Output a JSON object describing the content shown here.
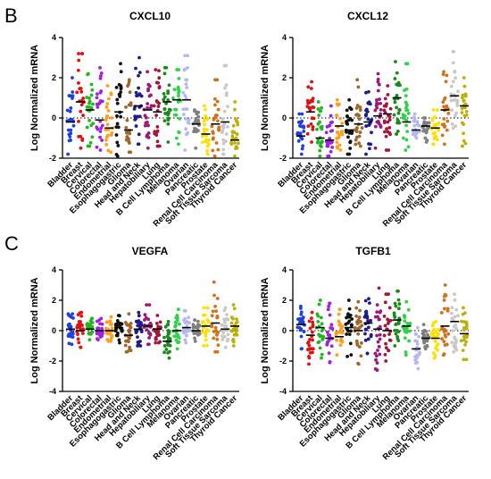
{
  "panel_letters": [
    "B",
    "C"
  ],
  "colors": {
    "Bladder": "#1f3fe0",
    "Breast": "#e01010",
    "Cervical": "#22b522",
    "Colorectal": "#a020e0",
    "Endometrial": "#ff9f1c",
    "Esophagogastric": "#111111",
    "Glioma": "#a0662a",
    "Head and Neck": "#1c1c8c",
    "Hepatobiliary": "#9a1a7a",
    "Lung": "#a3163a",
    "B Cell Lymphoma": "#1a8a1a",
    "Melanoma": "#2fd24a",
    "Ovarian": "#b4b8f2",
    "Pancreatic": "#7f7f7f",
    "Prostate": "#ffe100",
    "Renal Cell Carcinoma": "#d4711a",
    "Soft Tissue Sarcoma": "#c8c8c8",
    "Thyroid Cancer": "#bdb00c"
  },
  "chart_data": [
    {
      "type": "scatter",
      "title": "CXCL10",
      "ylabel": "Log Normalized mRNA",
      "ylim": [
        -2,
        4
      ],
      "yticks": [
        -2,
        0,
        2,
        4
      ],
      "categories": [
        "Bladder",
        "Breast",
        "Cervical",
        "Colorectal",
        "Endometrial",
        "Esophagogastric",
        "Glioma",
        "Head and Neck",
        "Hepatobiliary",
        "Lung",
        "B Cell Lymphoma",
        "Melanoma",
        "Ovarian",
        "Pancreatic",
        "Prostate",
        "Renal Cell Carcinoma",
        "Soft Tissue Sarcoma",
        "Thyroid Cancer"
      ],
      "series": [
        {
          "min": -1.8,
          "max": 2.0,
          "median": -0.2
        },
        {
          "min": -1.5,
          "max": 3.2,
          "median": 0.8
        },
        {
          "min": -1.4,
          "max": 2.2,
          "median": 0.4
        },
        {
          "min": -1.6,
          "max": 2.5,
          "median": -0.1
        },
        {
          "min": -1.7,
          "max": 1.6,
          "median": -0.5
        },
        {
          "min": -1.9,
          "max": 2.7,
          "median": 0.3
        },
        {
          "min": -1.7,
          "max": 1.9,
          "median": -0.6
        },
        {
          "min": -1.3,
          "max": 3.0,
          "median": 0.6
        },
        {
          "min": -1.5,
          "max": 2.3,
          "median": 0.4
        },
        {
          "min": -1.4,
          "max": 2.4,
          "median": 0.3
        },
        {
          "min": -1.2,
          "max": 2.5,
          "median": 0.8
        },
        {
          "min": -1.3,
          "max": 2.4,
          "median": 0.9
        },
        {
          "min": -1.6,
          "max": 3.1,
          "median": 0.9
        },
        {
          "min": -1.5,
          "max": 0.4,
          "median": -0.3
        },
        {
          "min": -1.8,
          "max": 0.6,
          "median": -0.8
        },
        {
          "min": -1.9,
          "max": 1.9,
          "median": -0.3
        },
        {
          "min": -1.8,
          "max": 2.6,
          "median": -0.2
        },
        {
          "min": -1.9,
          "max": 0.8,
          "median": -1.1
        }
      ]
    },
    {
      "type": "scatter",
      "title": "CXCL12",
      "ylabel": "Log Normalized mRNA",
      "ylim": [
        -2,
        4
      ],
      "yticks": [
        -2,
        0,
        2,
        4
      ],
      "categories": [
        "Bladder",
        "Breast",
        "Cervical",
        "Colorectal",
        "Endometrial",
        "Esophagogastric",
        "Glioma",
        "Head and Neck",
        "Hepatobiliary",
        "Lung",
        "B Cell Lymphoma",
        "Melanoma",
        "Ovarian",
        "Pancreatic",
        "Prostate",
        "Renal Cell Carcinoma",
        "Soft Tissue Sarcoma",
        "Thyroid Cancer"
      ],
      "series": [
        {
          "min": -1.8,
          "max": 0.2,
          "median": -0.9
        },
        {
          "min": -1.2,
          "max": 1.8,
          "median": 0.3
        },
        {
          "min": -1.9,
          "max": 0.8,
          "median": -1.0
        },
        {
          "min": -1.9,
          "max": 0.6,
          "median": -1.1
        },
        {
          "min": -1.6,
          "max": 0.9,
          "median": -0.4
        },
        {
          "min": -1.8,
          "max": 0.9,
          "median": -0.6
        },
        {
          "min": -1.4,
          "max": 1.9,
          "median": -0.3
        },
        {
          "min": -1.8,
          "max": 1.3,
          "median": -0.2
        },
        {
          "min": -1.5,
          "max": 2.2,
          "median": 0.1
        },
        {
          "min": -1.6,
          "max": 1.6,
          "median": 0.2
        },
        {
          "min": -0.8,
          "max": 2.8,
          "median": 1.0
        },
        {
          "min": -1.6,
          "max": 2.7,
          "median": -0.2
        },
        {
          "min": -1.0,
          "max": 0.2,
          "median": -0.6
        },
        {
          "min": -1.2,
          "max": 0.0,
          "median": -0.4
        },
        {
          "min": -1.3,
          "max": 0.4,
          "median": -0.5
        },
        {
          "min": -1.3,
          "max": 2.3,
          "median": 0.4
        },
        {
          "min": -0.5,
          "max": 3.3,
          "median": 1.1
        },
        {
          "min": -1.4,
          "max": 2.0,
          "median": 0.6
        }
      ]
    },
    {
      "type": "scatter",
      "title": "VEGFA",
      "ylabel": "Log Normalized mRNA",
      "ylim": [
        -4,
        4
      ],
      "yticks": [
        -4,
        -2,
        0,
        2,
        4
      ],
      "categories": [
        "Bladder",
        "Breast",
        "Cervical",
        "Colorectal",
        "Endometrial",
        "Esophagogastric",
        "Glioma",
        "Head and Neck",
        "Hepatobiliary",
        "Lung",
        "B Cell Lymphoma",
        "Melanoma",
        "Ovarian",
        "Pancreatic",
        "Prostate",
        "Renal Cell Carcinoma",
        "Soft Tissue Sarcoma",
        "Thyroid Cancer"
      ],
      "series": [
        {
          "min": -0.9,
          "max": 1.1,
          "median": 0.1
        },
        {
          "min": -1.1,
          "max": 1.2,
          "median": 0.0
        },
        {
          "min": -0.6,
          "max": 0.8,
          "median": 0.1
        },
        {
          "min": -0.6,
          "max": 0.8,
          "median": 0.0
        },
        {
          "min": -0.7,
          "max": 0.9,
          "median": 0.0
        },
        {
          "min": -0.8,
          "max": 1.0,
          "median": 0.2
        },
        {
          "min": -1.4,
          "max": 1.1,
          "median": -0.3
        },
        {
          "min": -1.0,
          "max": 1.2,
          "median": 0.1
        },
        {
          "min": -0.9,
          "max": 1.7,
          "median": 0.3
        },
        {
          "min": -0.8,
          "max": 1.0,
          "median": 0.1
        },
        {
          "min": -1.8,
          "max": 0.6,
          "median": -0.7
        },
        {
          "min": -1.2,
          "max": 1.4,
          "median": 0.0
        },
        {
          "min": -0.8,
          "max": 1.3,
          "median": 0.2
        },
        {
          "min": -0.7,
          "max": 0.7,
          "median": 0.0
        },
        {
          "min": -1.0,
          "max": 1.5,
          "median": 0.3
        },
        {
          "min": -1.4,
          "max": 3.2,
          "median": 0.5
        },
        {
          "min": -1.1,
          "max": 1.5,
          "median": 0.1
        },
        {
          "min": -1.0,
          "max": 1.7,
          "median": 0.3
        }
      ]
    },
    {
      "type": "scatter",
      "title": "TGFB1",
      "ylabel": "Log Normalized mRNA",
      "ylim": [
        -4,
        4
      ],
      "yticks": [
        -4,
        -2,
        0,
        2,
        4
      ],
      "categories": [
        "Bladder",
        "Breast",
        "Cervical",
        "Colorectal",
        "Endometrial",
        "Esophagogastric",
        "Glioma",
        "Head and Neck",
        "Hepatobiliary",
        "Lung",
        "B Cell Lymphoma",
        "Melanoma",
        "Ovarian",
        "Pancreatic",
        "Prostate",
        "Renal Cell Carcinoma",
        "Soft Tissue Sarcoma",
        "Thyroid Cancer"
      ],
      "series": [
        {
          "min": -1.2,
          "max": 1.6,
          "median": 0.4
        },
        {
          "min": -2.2,
          "max": 1.2,
          "median": -0.3
        },
        {
          "min": -1.8,
          "max": 2.0,
          "median": 0.2
        },
        {
          "min": -2.1,
          "max": 1.8,
          "median": -0.5
        },
        {
          "min": -1.6,
          "max": 1.4,
          "median": -0.4
        },
        {
          "min": -1.7,
          "max": 2.0,
          "median": 0.2
        },
        {
          "min": -2.2,
          "max": 1.9,
          "median": 0.0
        },
        {
          "min": -1.5,
          "max": 2.1,
          "median": 0.5
        },
        {
          "min": -2.6,
          "max": 2.8,
          "median": 0.1
        },
        {
          "min": -2.0,
          "max": 2.4,
          "median": 0.0
        },
        {
          "min": -1.0,
          "max": 2.6,
          "median": 0.7
        },
        {
          "min": -1.6,
          "max": 1.9,
          "median": 0.3
        },
        {
          "min": -2.5,
          "max": 0.2,
          "median": -1.2
        },
        {
          "min": -1.2,
          "max": 0.4,
          "median": -0.5
        },
        {
          "min": -1.8,
          "max": 0.6,
          "median": -0.5
        },
        {
          "min": -1.6,
          "max": 3.0,
          "median": 0.3
        },
        {
          "min": -1.4,
          "max": 2.4,
          "median": 0.6
        },
        {
          "min": -1.9,
          "max": 1.5,
          "median": -0.2
        }
      ]
    }
  ]
}
